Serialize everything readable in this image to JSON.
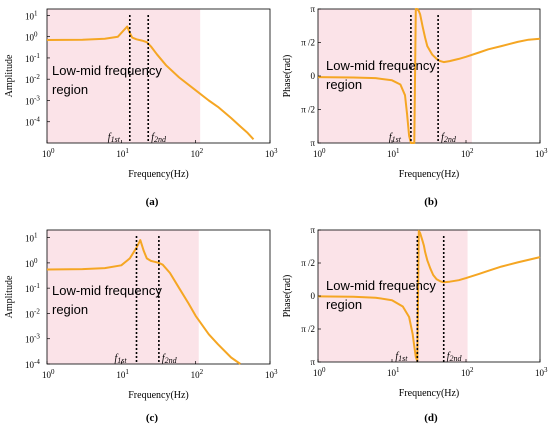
{
  "figure": {
    "region_line1": "Low-mid  frequency",
    "region_line2": "region",
    "f1_label": "f",
    "f1_sub": "1st",
    "f2_label": "f",
    "f2_sub": "2nd"
  },
  "colors": {
    "curve": "#f5a623",
    "region": "#fbe3e8",
    "marker": "#000000"
  },
  "chart_data": [
    {
      "id": "a",
      "caption": "(a)",
      "type": "line",
      "xlabel": "Frequency(Hz)",
      "ylabel": "Amplitude",
      "xscale": "log",
      "yscale": "log",
      "xlim": [
        1,
        1000
      ],
      "ylim": [
        1e-05,
        20
      ],
      "xticks": [
        1,
        10,
        100,
        1000
      ],
      "xtick_labels": [
        "10",
        "10",
        "10",
        "10"
      ],
      "xtick_exps": [
        "0",
        "1",
        "2",
        "3"
      ],
      "yticks": [
        10,
        1,
        0.1,
        0.01,
        0.001,
        0.0001
      ],
      "ytick_labels": [
        "10",
        "10",
        "10",
        "10",
        "10",
        "10"
      ],
      "ytick_exps": [
        "1",
        "0",
        "-1",
        "-2",
        "-3",
        "-4"
      ],
      "region_x": [
        1,
        115
      ],
      "f1": 13,
      "f2": 23,
      "x": [
        1,
        3,
        6,
        9,
        12,
        13,
        14,
        16,
        19,
        22,
        25,
        30,
        40,
        60,
        100,
        150,
        200,
        300,
        400,
        500,
        600
      ],
      "y": [
        0.7,
        0.72,
        0.8,
        1.0,
        3.0,
        1.5,
        0.9,
        0.75,
        0.65,
        0.55,
        0.35,
        0.15,
        0.045,
        0.012,
        0.003,
        0.001,
        0.0005,
        0.00015,
        6e-05,
        3e-05,
        1.5e-05
      ]
    },
    {
      "id": "b",
      "caption": "(b)",
      "type": "line",
      "xlabel": "Frequency(Hz)",
      "ylabel": "Phase(rad)",
      "xscale": "log",
      "yscale": "linear",
      "xlim": [
        1,
        1000
      ],
      "ylim": [
        -3.1416,
        3.1416
      ],
      "xticks": [
        1,
        10,
        100,
        1000
      ],
      "xtick_labels": [
        "10",
        "10",
        "10",
        "10"
      ],
      "xtick_exps": [
        "0",
        "1",
        "2",
        "3"
      ],
      "yticks": [
        3.1416,
        1.5708,
        0,
        -1.5708,
        -3.1416
      ],
      "ytick_labels": [
        "π",
        "π /2",
        "0",
        "π /2",
        "π"
      ],
      "region_x": [
        1,
        120
      ],
      "f1": 18,
      "f2": 42,
      "x": [
        1,
        3,
        6,
        10,
        13,
        15,
        16,
        17,
        18,
        19,
        20,
        21,
        22,
        23,
        24,
        25,
        26,
        28,
        30,
        35,
        40,
        45,
        50,
        60,
        80,
        100,
        150,
        200,
        300,
        500,
        700,
        1000
      ],
      "y": [
        -0.05,
        -0.07,
        -0.1,
        -0.2,
        -0.4,
        -0.9,
        -1.8,
        -2.8,
        -3.14,
        -3.14,
        -3.14,
        3.14,
        3.14,
        3.05,
        2.9,
        2.6,
        2.3,
        1.8,
        1.4,
        1.0,
        0.8,
        0.7,
        0.65,
        0.7,
        0.8,
        0.9,
        1.1,
        1.25,
        1.4,
        1.6,
        1.7,
        1.75
      ]
    },
    {
      "id": "c",
      "caption": "(c)",
      "type": "line",
      "xlabel": "Frequency(Hz)",
      "ylabel": "Amplitude",
      "xscale": "log",
      "yscale": "log",
      "xlim": [
        1,
        1000
      ],
      "ylim": [
        0.0001,
        20
      ],
      "xticks": [
        1,
        10,
        100,
        1000
      ],
      "xtick_labels": [
        "10",
        "10",
        "10",
        "10"
      ],
      "xtick_exps": [
        "0",
        "1",
        "2",
        "3"
      ],
      "yticks": [
        10,
        1,
        0.1,
        0.01,
        0.001,
        0.0001
      ],
      "ytick_labels": [
        "10",
        "10",
        "10",
        "10",
        "10",
        "10"
      ],
      "ytick_exps": [
        "1",
        "0",
        "-1",
        "-2",
        "-3",
        "-4"
      ],
      "region_x": [
        1,
        110
      ],
      "f1": 16,
      "f2": 32,
      "x": [
        1,
        3,
        6,
        10,
        13,
        16,
        18,
        20,
        22,
        25,
        28,
        32,
        36,
        45,
        60,
        80,
        100,
        150,
        200,
        300,
        400
      ],
      "y": [
        0.55,
        0.57,
        0.62,
        0.8,
        1.5,
        4.0,
        8.0,
        3.0,
        1.5,
        1.2,
        1.1,
        1.0,
        0.85,
        0.4,
        0.1,
        0.025,
        0.008,
        0.0015,
        0.0006,
        0.00018,
        0.0001
      ]
    },
    {
      "id": "d",
      "caption": "(d)",
      "type": "line",
      "xlabel": "Frequency(Hz)",
      "ylabel": "Phase(rad)",
      "xscale": "log",
      "yscale": "linear",
      "xlim": [
        1,
        1000
      ],
      "ylim": [
        -3.1416,
        3.1416
      ],
      "xticks": [
        1,
        10,
        100,
        1000
      ],
      "xtick_labels": [
        "10",
        "10",
        "10",
        "10"
      ],
      "xtick_exps": [
        "0",
        "1",
        "2",
        "3"
      ],
      "yticks": [
        3.1416,
        1.5708,
        0,
        -1.5708,
        -3.1416
      ],
      "ytick_labels": [
        "π",
        "π /2",
        "0",
        "π /2",
        "π"
      ],
      "region_x": [
        1,
        105
      ],
      "f1": 22,
      "f2": 50,
      "x": [
        1,
        3,
        6,
        10,
        14,
        17,
        19,
        20,
        21,
        22,
        23,
        24,
        25,
        26,
        27,
        28,
        30,
        33,
        36,
        40,
        45,
        50,
        60,
        80,
        100,
        150,
        200,
        300,
        500,
        1000
      ],
      "y": [
        -0.02,
        -0.04,
        -0.08,
        -0.2,
        -0.5,
        -1.0,
        -1.8,
        -2.4,
        -2.9,
        -3.1,
        3.1,
        3.0,
        2.8,
        2.6,
        2.4,
        2.1,
        1.7,
        1.3,
        1.0,
        0.8,
        0.7,
        0.65,
        0.68,
        0.75,
        0.85,
        1.05,
        1.2,
        1.4,
        1.6,
        1.85
      ]
    }
  ]
}
